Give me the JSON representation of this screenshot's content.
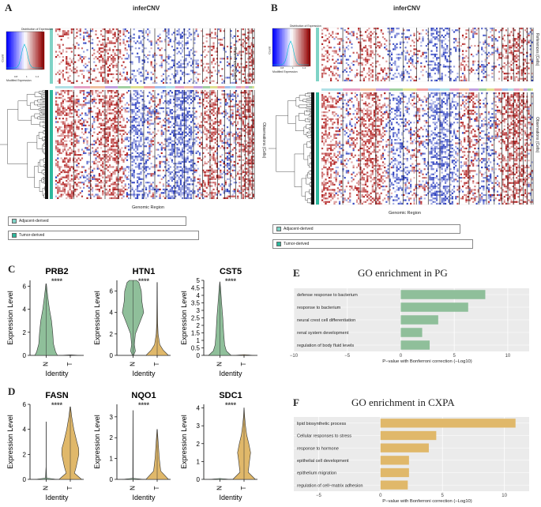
{
  "panels": {
    "A": {
      "label": "A",
      "title": "inferCNV",
      "legend_title": "Distribution of Expression",
      "legend_ylabel": "Count",
      "legend_xlabel": "Modified Expression",
      "legend_ticks": [
        "0.8",
        "1",
        "1.2"
      ],
      "references_label": "References (Cells)",
      "observations_label": "Observations (Cells)",
      "xlabel": "Genomic Region",
      "legend_items": [
        {
          "label": "Adjacent-derived",
          "color": "#7fd3c6"
        },
        {
          "label": "Tumor-derived",
          "color": "#2cb89c"
        }
      ]
    },
    "B": {
      "label": "B",
      "title": "inferCNV",
      "legend_title": "Distribution of Expression",
      "legend_ylabel": "Count",
      "legend_xlabel": "Modified Expression",
      "legend_ticks": [
        "0.8",
        "1",
        "1.2"
      ],
      "references_label": "References (Cells)",
      "observations_label": "Observations (Cells)",
      "xlabel": "Genomic Region",
      "legend_items": [
        {
          "label": "Adjacent-derived",
          "color": "#7fd3c6"
        },
        {
          "label": "Tumor-derived",
          "color": "#2cb89c"
        }
      ]
    },
    "C": {
      "label": "C"
    },
    "D": {
      "label": "D"
    },
    "E": {
      "label": "E",
      "title": "GO enrichment in PG"
    },
    "F": {
      "label": "F",
      "title": "GO enrichment in CXPA"
    }
  },
  "chart_data": [
    {
      "type": "violin",
      "panel": "C",
      "title": "PRB2",
      "significance": "****",
      "categories": [
        "N",
        "T"
      ],
      "xlabel": "Identity",
      "ylabel": "Expression Level",
      "ylim": [
        0,
        6.5
      ],
      "yticks": [
        0,
        2,
        4,
        6
      ],
      "color": "#8fbf9a",
      "series": [
        {
          "name": "N",
          "max": 6.2,
          "profile": [
            [
              0,
              0.95
            ],
            [
              0.3,
              0.8
            ],
            [
              1,
              0.62
            ],
            [
              2,
              0.55
            ],
            [
              3,
              0.45
            ],
            [
              4,
              0.28
            ],
            [
              5,
              0.15
            ],
            [
              6.2,
              0.02
            ]
          ]
        },
        {
          "name": "T",
          "max": 0.05,
          "profile": [
            [
              0,
              0.9
            ],
            [
              0.05,
              0.0
            ]
          ]
        }
      ]
    },
    {
      "type": "violin",
      "panel": "C",
      "title": "HTN1",
      "significance": "****",
      "categories": [
        "N",
        "T"
      ],
      "xlabel": "Identity",
      "ylabel": "Expression Level",
      "ylim": [
        0,
        7
      ],
      "yticks": [
        0,
        2,
        4,
        6
      ],
      "series": [
        {
          "name": "N",
          "max": 7.0,
          "color": "#8fbf9a",
          "profile": [
            [
              0,
              0.05
            ],
            [
              0.4,
              0.2
            ],
            [
              1,
              0.12
            ],
            [
              2,
              0.2
            ],
            [
              3,
              0.55
            ],
            [
              4,
              0.9
            ],
            [
              5,
              0.75
            ],
            [
              6,
              0.7
            ],
            [
              6.8,
              0.5
            ],
            [
              7,
              0.3
            ]
          ]
        },
        {
          "name": "T",
          "max": 6.8,
          "color": "#e0b86a",
          "profile": [
            [
              0,
              0.95
            ],
            [
              0.5,
              0.5
            ],
            [
              1,
              0.22
            ],
            [
              2,
              0.08
            ],
            [
              3,
              0.04
            ],
            [
              5,
              0.02
            ],
            [
              6.8,
              0.01
            ]
          ]
        }
      ]
    },
    {
      "type": "violin",
      "panel": "C",
      "title": "CST5",
      "significance": "****",
      "categories": [
        "N",
        "T"
      ],
      "xlabel": "Identity",
      "ylabel": "Expression Level",
      "ylim": [
        0,
        5
      ],
      "yticks": [
        0,
        0.5,
        1,
        1.5,
        2,
        2.5,
        3,
        3.5,
        4,
        4.5,
        5
      ],
      "series": [
        {
          "name": "N",
          "max": 4.9,
          "color": "#8fbf9a",
          "profile": [
            [
              0,
              0.95
            ],
            [
              0.3,
              0.55
            ],
            [
              0.7,
              0.4
            ],
            [
              1.5,
              0.32
            ],
            [
              2.5,
              0.25
            ],
            [
              3.5,
              0.15
            ],
            [
              4.5,
              0.06
            ],
            [
              4.9,
              0.01
            ]
          ]
        },
        {
          "name": "T",
          "max": 0.05,
          "color": "#e0b86a",
          "profile": [
            [
              0,
              0.9
            ],
            [
              0.05,
              0.0
            ]
          ]
        }
      ]
    },
    {
      "type": "violin",
      "panel": "D",
      "title": "FASN",
      "significance": "****",
      "categories": [
        "N",
        "T"
      ],
      "xlabel": "Identity",
      "ylabel": "Expression Level",
      "ylim": [
        0,
        6
      ],
      "yticks": [
        0,
        2,
        4,
        6
      ],
      "series": [
        {
          "name": "N",
          "max": 4.6,
          "color": "#8fbf9a",
          "profile": [
            [
              0,
              0.9
            ],
            [
              0.1,
              0.05
            ],
            [
              1,
              0.01
            ],
            [
              4.6,
              0.005
            ]
          ]
        },
        {
          "name": "T",
          "max": 5.8,
          "color": "#e0b86a",
          "profile": [
            [
              0,
              0.95
            ],
            [
              0.5,
              0.35
            ],
            [
              1,
              0.5
            ],
            [
              2,
              0.72
            ],
            [
              2.5,
              0.7
            ],
            [
              3,
              0.55
            ],
            [
              4,
              0.3
            ],
            [
              5,
              0.12
            ],
            [
              5.8,
              0.02
            ]
          ]
        }
      ]
    },
    {
      "type": "violin",
      "panel": "D",
      "title": "NQO1",
      "significance": "****",
      "categories": [
        "N",
        "T"
      ],
      "xlabel": "Identity",
      "ylabel": "Expression Level",
      "ylim": [
        0,
        3.6
      ],
      "yticks": [
        0,
        1,
        2,
        3
      ],
      "series": [
        {
          "name": "N",
          "max": 3.3,
          "color": "#8fbf9a",
          "profile": [
            [
              0,
              0.9
            ],
            [
              0.05,
              0.02
            ],
            [
              3.3,
              0.005
            ]
          ]
        },
        {
          "name": "T",
          "max": 2.4,
          "color": "#e0b86a",
          "profile": [
            [
              0,
              0.95
            ],
            [
              0.4,
              0.3
            ],
            [
              1,
              0.18
            ],
            [
              1.5,
              0.12
            ],
            [
              2,
              0.06
            ],
            [
              2.4,
              0.01
            ]
          ]
        }
      ]
    },
    {
      "type": "violin",
      "panel": "D",
      "title": "SDC1",
      "significance": "****",
      "categories": [
        "N",
        "T"
      ],
      "xlabel": "Identity",
      "ylabel": "Expression Level",
      "ylim": [
        0,
        4.2
      ],
      "yticks": [
        0,
        1,
        2,
        3,
        4
      ],
      "series": [
        {
          "name": "N",
          "max": 0.05,
          "color": "#8fbf9a",
          "profile": [
            [
              0,
              0.9
            ],
            [
              0.05,
              0.0
            ]
          ]
        },
        {
          "name": "T",
          "max": 4.0,
          "color": "#e0b86a",
          "profile": [
            [
              0,
              0.95
            ],
            [
              0.4,
              0.35
            ],
            [
              1,
              0.45
            ],
            [
              1.5,
              0.55
            ],
            [
              2,
              0.4
            ],
            [
              2.5,
              0.22
            ],
            [
              3,
              0.12
            ],
            [
              3.5,
              0.05
            ],
            [
              4,
              0.01
            ]
          ]
        }
      ]
    },
    {
      "type": "bar",
      "orientation": "horizontal",
      "panel": "E",
      "title": "GO enrichment in PG",
      "categories": [
        "defense response to bacterium",
        "response to bacterium",
        "neural crest cell differentiation",
        "renal system development",
        "regulation of body fluid levels"
      ],
      "values": [
        7.9,
        6.3,
        3.5,
        2.0,
        2.7
      ],
      "color": "#8fbf9a",
      "xlabel": "P−value with Bonferroni correction (−Log10)",
      "xlim": [
        -10,
        12
      ],
      "xticks": [
        -10,
        -5,
        0,
        5,
        10
      ],
      "xticklabels": [
        "−10",
        "−5",
        "0",
        "5",
        "10"
      ]
    },
    {
      "type": "bar",
      "orientation": "horizontal",
      "panel": "F",
      "title": "GO enrichment in CXPA",
      "categories": [
        "lipid biosynthetic process",
        "Cellular responses to stress",
        "response to hormone",
        "epithelial cell development",
        "epithelium migration",
        "regulation of cell−matrix adhesion"
      ],
      "values": [
        10.9,
        4.5,
        3.9,
        2.3,
        2.3,
        2.2
      ],
      "color": "#e0b86a",
      "xlabel": "P−value with Bonferroni correction (−Log10)",
      "xlim": [
        -7,
        12
      ],
      "xticks": [
        -5,
        0,
        5,
        10
      ],
      "xticklabels": [
        "−5",
        "0",
        "5",
        "10"
      ]
    }
  ]
}
